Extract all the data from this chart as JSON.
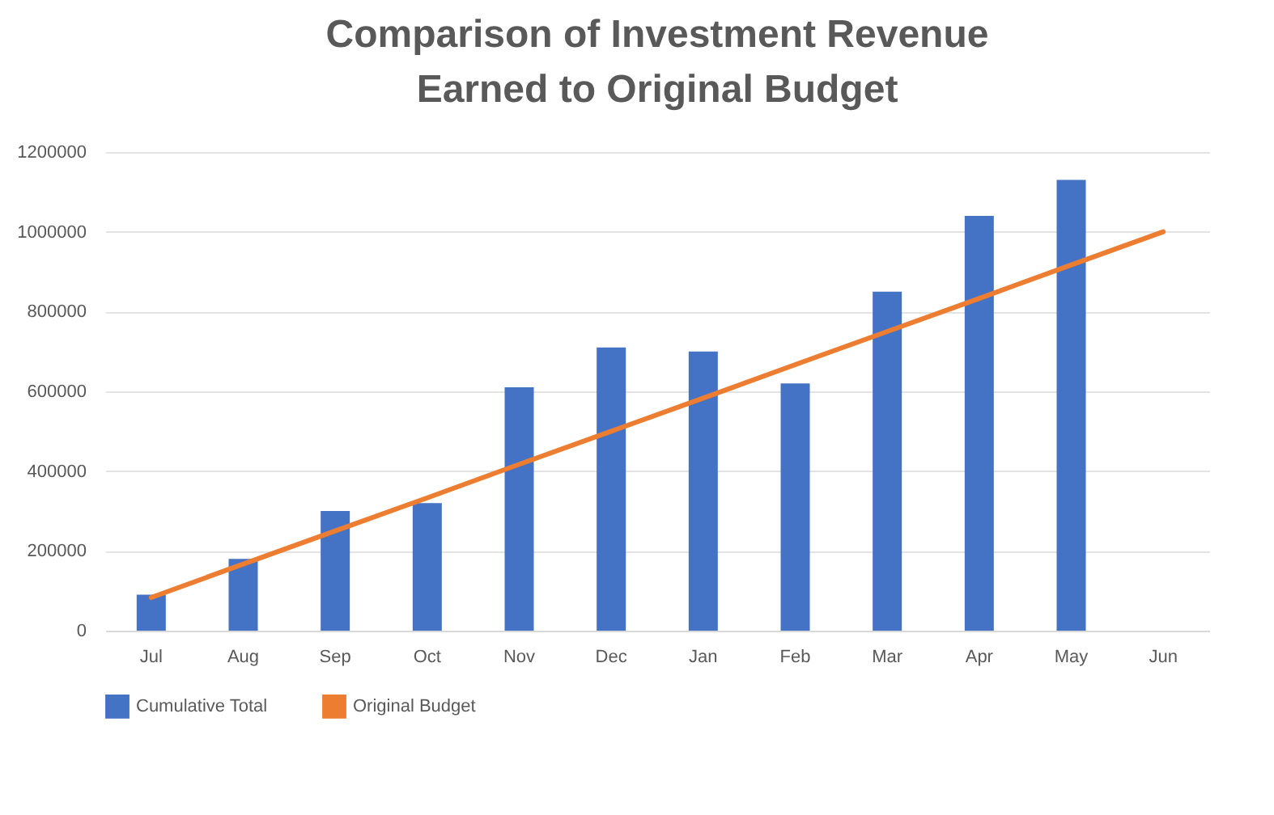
{
  "chart_data": {
    "type": "bar",
    "title": "Comparison of Investment Revenue Earned to Original Budget",
    "categories": [
      "Jul",
      "Aug",
      "Sep",
      "Oct",
      "Nov",
      "Dec",
      "Jan",
      "Feb",
      "Mar",
      "Apr",
      "May",
      "Jun"
    ],
    "series": [
      {
        "name": "Cumulative Total",
        "color": "#4472c4",
        "values": [
          90000,
          180000,
          300000,
          320000,
          610000,
          710000,
          700000,
          620000,
          850000,
          1040000,
          1130000,
          null
        ]
      },
      {
        "name": "Original Budget",
        "type": "line",
        "color": "#ed7d31",
        "values": [
          83000,
          167000,
          250000,
          333000,
          417000,
          500000,
          583000,
          667000,
          750000,
          833000,
          917000,
          1000000
        ]
      }
    ],
    "ylim": [
      0,
      1200000
    ],
    "yticks": [
      0,
      200000,
      400000,
      600000,
      800000,
      1000000,
      1200000
    ],
    "grid": "y",
    "legend": "bottom"
  }
}
